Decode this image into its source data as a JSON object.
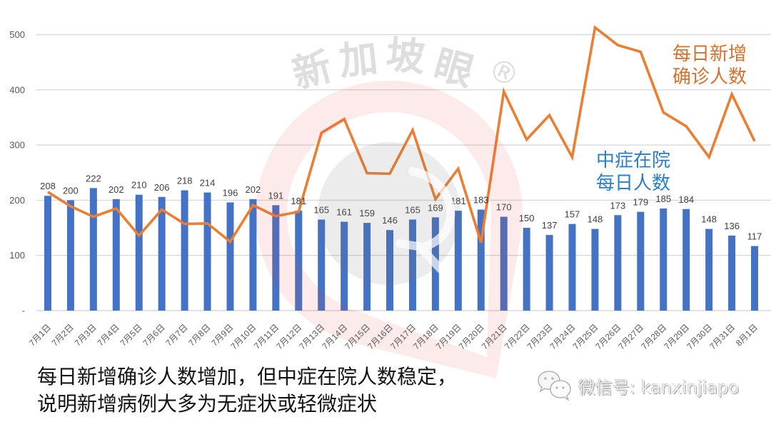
{
  "chart_data": {
    "type": "bar",
    "title": "",
    "xlabel": "",
    "ylabel": "",
    "ylim": [
      0,
      500
    ],
    "yticks": [
      0,
      100,
      200,
      300,
      400,
      500
    ],
    "ytick_labels": [
      "-",
      "100",
      "200",
      "300",
      "400",
      "500"
    ],
    "grid": true,
    "legend": "none (inline text annotations)",
    "categories": [
      "7月1日",
      "7月2日",
      "7月3日",
      "7月4日",
      "7月5日",
      "7月6日",
      "7月7日",
      "7月8日",
      "7月9日",
      "7月10日",
      "7月11日",
      "7月12日",
      "7月13日",
      "7月14日",
      "7月15日",
      "7月16日",
      "7月17日",
      "7月18日",
      "7月19日",
      "7月20日",
      "7月21日",
      "7月22日",
      "7月23日",
      "7月24日",
      "7月25日",
      "7月26日",
      "7月27日",
      "7月28日",
      "7月29日",
      "7月30日",
      "7月31日",
      "8月1日"
    ],
    "series": [
      {
        "name": "中症在院每日人数",
        "type": "bar",
        "color": "#4472C4",
        "data_labels": true,
        "values": [
          208,
          200,
          222,
          202,
          210,
          206,
          218,
          214,
          196,
          202,
          191,
          181,
          165,
          161,
          159,
          146,
          165,
          169,
          181,
          183,
          170,
          150,
          137,
          157,
          148,
          173,
          179,
          185,
          184,
          148,
          136,
          117
        ]
      },
      {
        "name": "每日新增确诊人数",
        "type": "line",
        "color": "#ED7D31",
        "data_labels": false,
        "values": [
          215,
          189,
          170,
          185,
          136,
          183,
          157,
          158,
          125,
          191,
          171,
          179,
          322,
          347,
          249,
          248,
          327,
          202,
          257,
          123,
          397,
          310,
          354,
          278,
          513,
          481,
          469,
          359,
          334,
          278,
          392,
          307
        ]
      }
    ],
    "annotations": [
      {
        "series": "每日新增确诊人数",
        "lines": [
          "每日新增",
          "确诊人数"
        ],
        "color": "#D5722E"
      },
      {
        "series": "中症在院每日人数",
        "lines": [
          "中症在院",
          "每日人数"
        ],
        "color": "#2B7FC8"
      }
    ]
  },
  "watermark": {
    "brand": "新加坡眼",
    "registered_mark": "®",
    "logo": "pin-logo-watermark",
    "colors": {
      "ring": "#E8383D",
      "inner": "#777777"
    }
  },
  "caption": {
    "line1": "每日新增确诊人数增加，但中症在院人数稳定，",
    "line2": "说明新增病例大多为无症状或轻微症状"
  },
  "footer": {
    "icon": "wechat-icon",
    "wechat_label": "微信号: kanxinjiapo"
  },
  "colors": {
    "gridline": "#D9D9D9",
    "axis_text": "#595959",
    "data_label": "#404040",
    "background": "#FFFFFF"
  }
}
